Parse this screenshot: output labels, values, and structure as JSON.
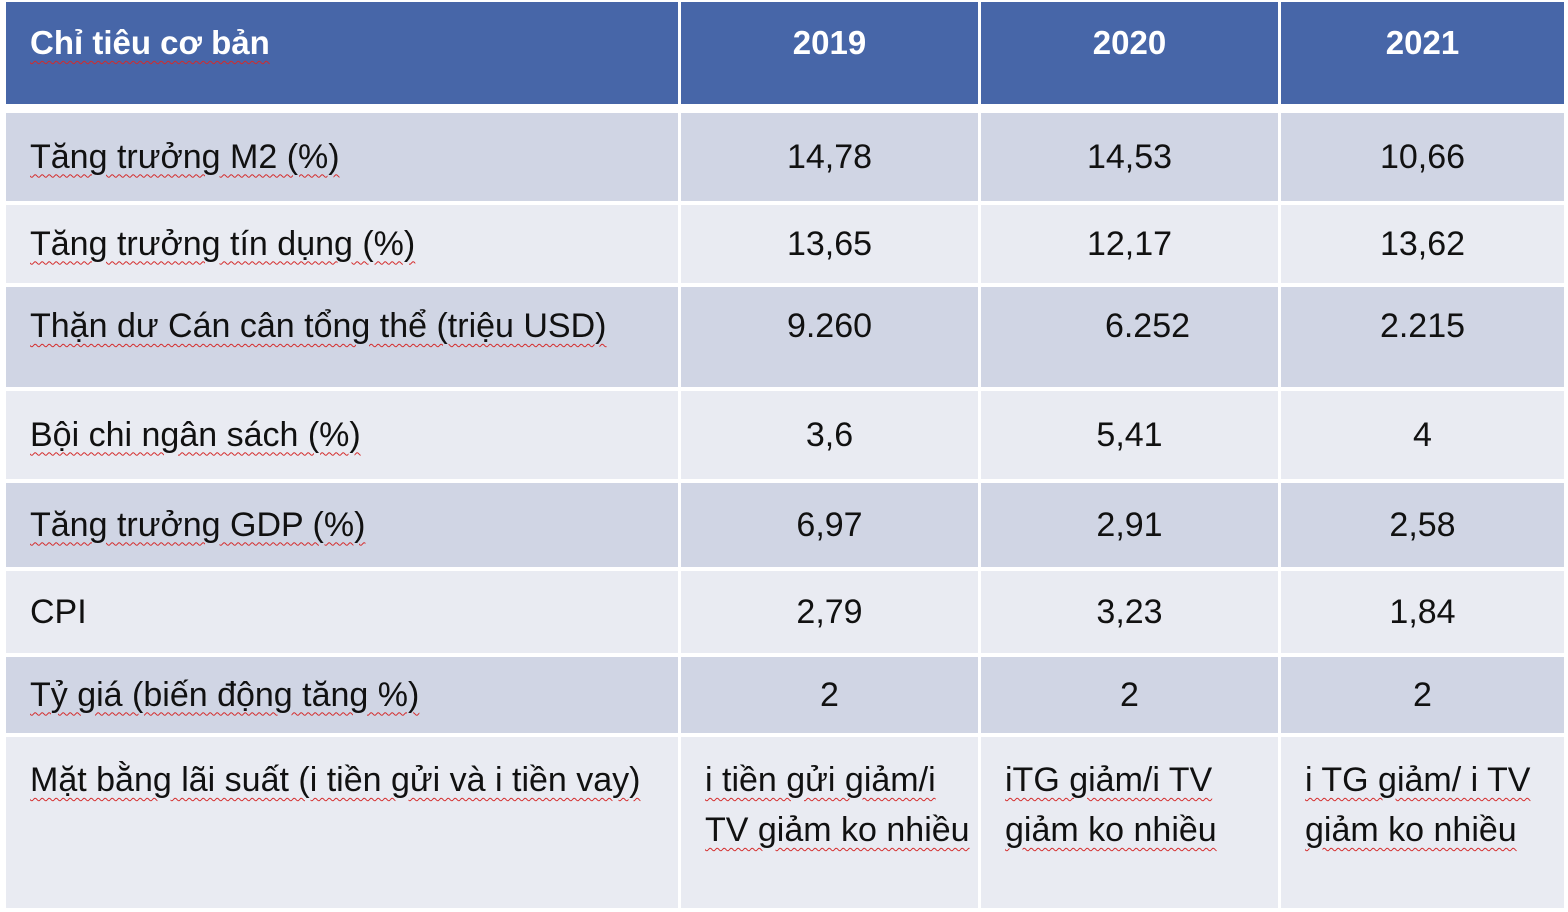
{
  "table": {
    "headers": [
      "Chỉ tiêu cơ bản",
      "2019",
      "2020",
      "2021"
    ],
    "rows": [
      {
        "label": "Tăng trưởng M2 (%)",
        "v2019": "14,78",
        "v2020": "14,53",
        "v2021": "10,66"
      },
      {
        "label": "Tăng trưởng tín dụng (%)",
        "v2019": "13,65",
        "v2020": "12,17",
        "v2021": "13,62"
      },
      {
        "label": "Thặn dư Cán cân tổng thể (triệu USD)",
        "v2019": "9.260",
        "v2020": "6.252",
        "v2021": "2.215"
      },
      {
        "label": "Bội chi ngân sách (%)",
        "v2019": "3,6",
        "v2020": "5,41",
        "v2021": "4"
      },
      {
        "label": "Tăng trưởng GDP (%)",
        "v2019": "6,97",
        "v2020": "2,91",
        "v2021": "2,58"
      },
      {
        "label": "CPI",
        "v2019": "2,79",
        "v2020": "3,23",
        "v2021": "1,84"
      },
      {
        "label": "Tỷ giá (biến động tăng %)",
        "v2019": "2",
        "v2020": "2",
        "v2021": "2"
      },
      {
        "label": "Mặt bằng lãi suất (i tiền gửi và i tiền vay)",
        "v2019": "i tiền gửi giảm/i TV giảm ko nhiều",
        "v2020": "iTG giảm/i TV giảm ko nhiều",
        "v2021": "i TG giảm/ i TV giảm ko nhiều"
      }
    ]
  }
}
